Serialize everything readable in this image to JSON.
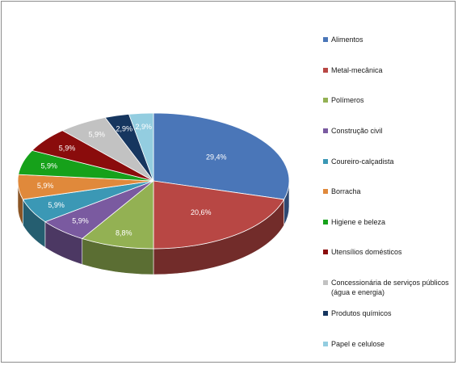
{
  "chart_data": {
    "type": "pie",
    "title": "",
    "categories": [
      "Alimentos",
      "Metal-mecânica",
      "Polímeros",
      "Construção civil",
      "Coureiro-calçadista",
      "Borracha",
      "Higiene e beleza",
      "Utensílios domésticos",
      "Concessionária de serviços públicos (água e energia)",
      "Produtos químicos",
      "Papel e celulose"
    ],
    "values": [
      29.4,
      20.6,
      8.8,
      5.9,
      5.9,
      5.9,
      5.9,
      5.9,
      5.9,
      2.9,
      2.9
    ],
    "labels": [
      "29,4%",
      "20,6%",
      "8,8%",
      "5,9%",
      "5,9%",
      "5,9%",
      "5,9%",
      "5,9%",
      "5,9%",
      "2,9%",
      "2,9%"
    ],
    "colors": [
      "#4a76b8",
      "#b84744",
      "#93b153",
      "#7a5aa0",
      "#3b98b5",
      "#e0893b",
      "#16a11a",
      "#8a0c0c",
      "#c2c2c2",
      "#16365f",
      "#93cde0"
    ],
    "legend_position": "right",
    "style": "3d"
  }
}
